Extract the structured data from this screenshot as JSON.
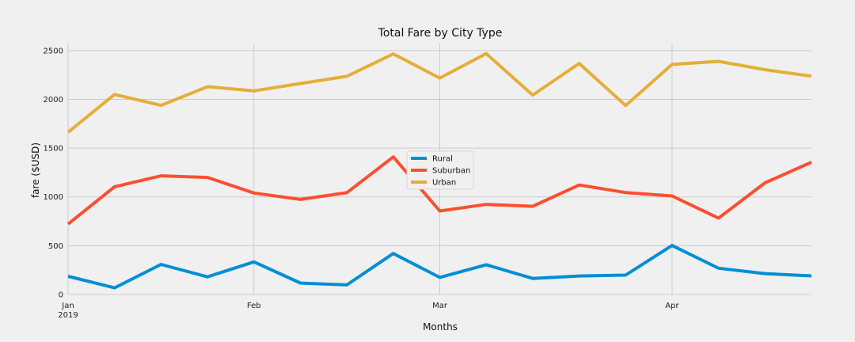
{
  "chart_data": {
    "type": "line",
    "title": "Total Fare by City Type",
    "xlabel": "Months",
    "ylabel": "fare ($USD)",
    "x": [
      "2019-01-06",
      "2019-01-13",
      "2019-01-20",
      "2019-01-27",
      "2019-02-03",
      "2019-02-10",
      "2019-02-17",
      "2019-02-24",
      "2019-03-03",
      "2019-03-10",
      "2019-03-17",
      "2019-03-24",
      "2019-03-31",
      "2019-04-07",
      "2019-04-14",
      "2019-04-21",
      "2019-04-28"
    ],
    "xlim": [
      "2019-01-06",
      "2019-04-28"
    ],
    "ylim": [
      0,
      2580
    ],
    "xticks": [
      {
        "date": "2019-01-06",
        "label": "Jan",
        "sublabel": "2019"
      },
      {
        "date": "2019-02-03",
        "label": "Feb"
      },
      {
        "date": "2019-03-03",
        "label": "Mar"
      },
      {
        "date": "2019-04-07",
        "label": "Apr"
      }
    ],
    "yticks": [
      0,
      500,
      1000,
      1500,
      2000,
      2500
    ],
    "grid": true,
    "legend_position": "center",
    "series": [
      {
        "name": "Rural",
        "color": "#008fd5",
        "values": [
          187,
          68,
          308,
          181,
          334,
          118,
          98,
          420,
          175,
          305,
          165,
          190,
          199,
          502,
          269,
          214,
          191
        ]
      },
      {
        "name": "Suburban",
        "color": "#fc4f30",
        "values": [
          722,
          1104,
          1216,
          1200,
          1040,
          974,
          1043,
          1410,
          856,
          923,
          904,
          1122,
          1045,
          1010,
          783,
          1144,
          1356
        ]
      },
      {
        "name": "Urban",
        "color": "#e5ae38",
        "values": [
          1662,
          2050,
          1938,
          2130,
          2087,
          2162,
          2236,
          2466,
          2218,
          2469,
          2044,
          2368,
          1937,
          2358,
          2389,
          2304,
          2238
        ]
      }
    ]
  }
}
